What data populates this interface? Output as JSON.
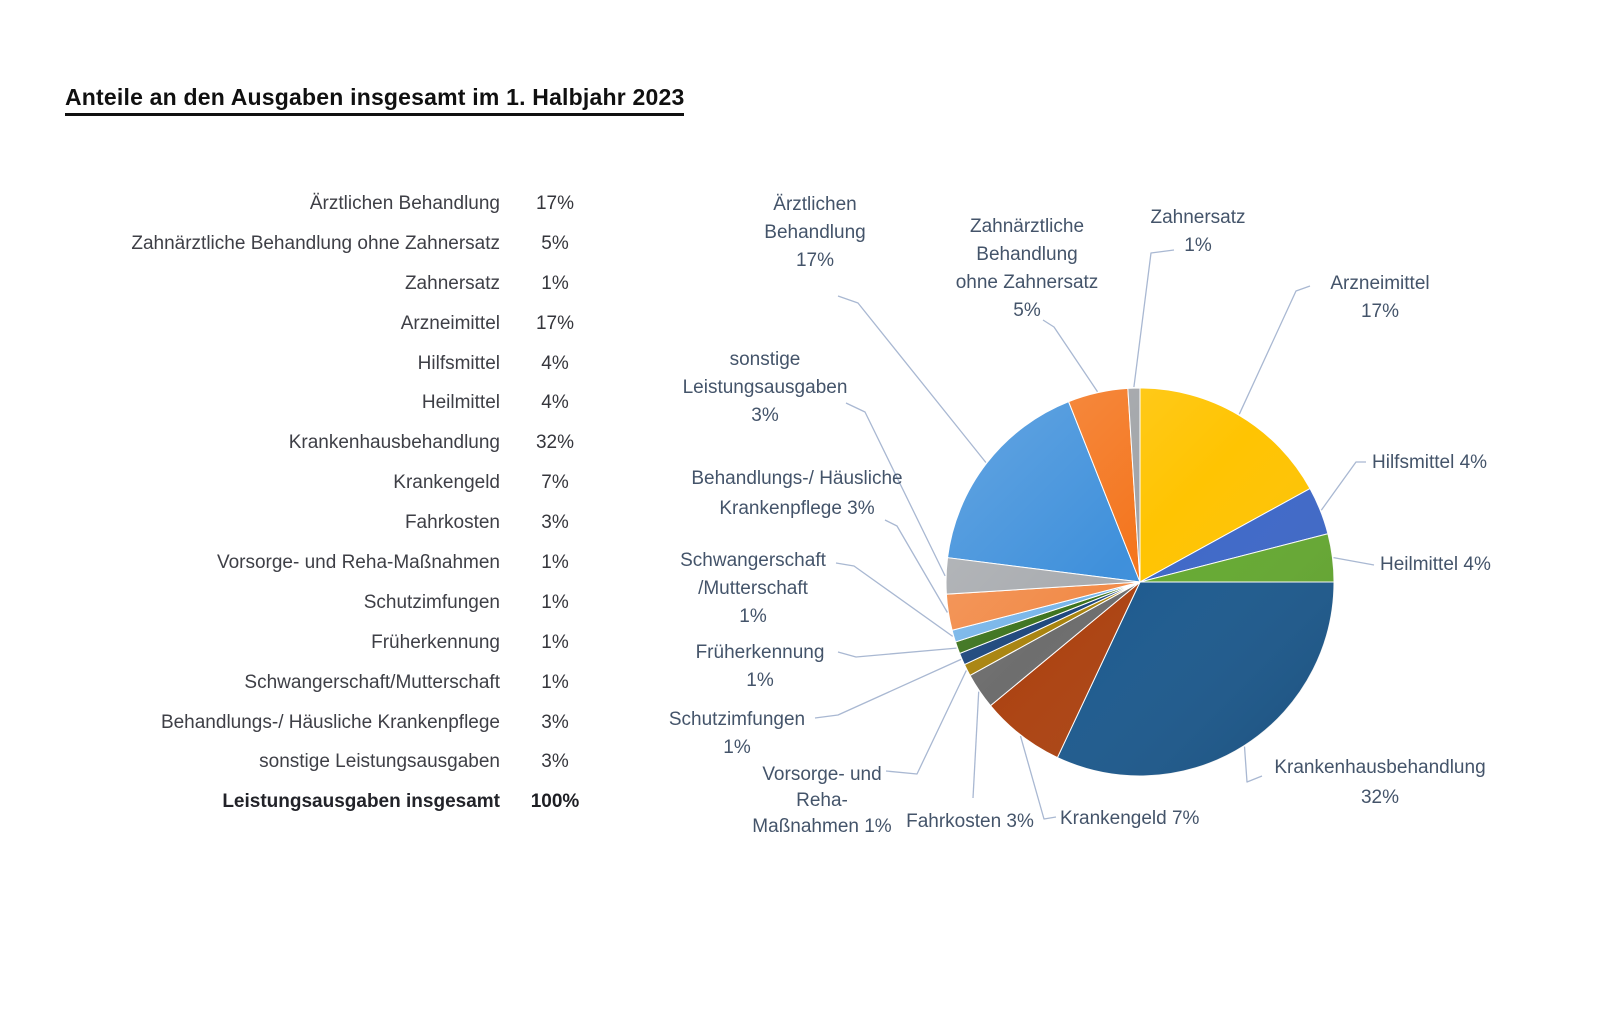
{
  "page": {
    "title": "Anteile an den Ausgaben insgesamt im 1. Halbjahr 2023"
  },
  "table": {
    "total_label": "Leistungsausgaben insgesamt",
    "total_value": "100%"
  },
  "chart_data": {
    "type": "pie",
    "title": "Anteile an den Ausgaben insgesamt im 1. Halbjahr 2023",
    "unit": "percent of total expenditure",
    "legend_position": "none",
    "start_angle_deg": -82.8,
    "direction": "clockwise",
    "label_color": "#44546a",
    "leader_line_color": "#a9b8d2",
    "categories": [
      "Ärztlichen Behandlung",
      "Zahnärztliche Behandlung ohne Zahnersatz",
      "Zahnersatz",
      "Arzneimittel",
      "Hilfsmittel",
      "Heilmittel",
      "Krankenhausbehandlung",
      "Krankengeld",
      "Fahrkosten",
      "Vorsorge- und Reha-Maßnahmen",
      "Schutzimfungen",
      "Früherkennung",
      "Schwangerschaft/Mutterschaft",
      "Behandlungs-/ Häusliche Krankenpflege",
      "sonstige Leistungsausgaben"
    ],
    "values": [
      17,
      5,
      1,
      17,
      4,
      4,
      32,
      7,
      3,
      1,
      1,
      1,
      1,
      3,
      3
    ],
    "slices": [
      {
        "label": "Ärztlichen Behandlung",
        "value": 17,
        "display": "17%",
        "color": "#3f90db",
        "callout_lines": [
          "Ärztlichen",
          "Behandlung",
          "17%"
        ]
      },
      {
        "label": "Zahnärztliche Behandlung ohne Zahnersatz",
        "value": 5,
        "display": "5%",
        "color": "#f4761f",
        "callout_lines": [
          "Zahnärztliche",
          "Behandlung",
          "ohne Zahnersatz",
          "5%"
        ]
      },
      {
        "label": "Zahnersatz",
        "value": 1,
        "display": "1%",
        "color": "#9fa2a6",
        "callout_lines": [
          "Zahnersatz",
          "1%"
        ]
      },
      {
        "label": "Arzneimittel",
        "value": 17,
        "display": "17%",
        "color": "#ffc402",
        "callout_lines": [
          "Arzneimittel",
          "17%"
        ]
      },
      {
        "label": "Hilfsmittel",
        "value": 4,
        "display": "4%",
        "color": "#3e68c8",
        "callout_lines": [
          "Hilfsmittel 4%"
        ]
      },
      {
        "label": "Heilmittel",
        "value": 4,
        "display": "4%",
        "color": "#65a931",
        "callout_lines": [
          "Heilmittel 4%"
        ]
      },
      {
        "label": "Krankenhausbehandlung",
        "value": 32,
        "display": "32%",
        "color": "#1d5a8e",
        "callout_lines": [
          "Krankenhausbehandlung",
          "32%"
        ]
      },
      {
        "label": "Krankengeld",
        "value": 7,
        "display": "7%",
        "color": "#ac4312",
        "callout_lines": [
          "Krankengeld 7%"
        ]
      },
      {
        "label": "Fahrkosten",
        "value": 3,
        "display": "3%",
        "color": "#6e6e6e",
        "callout_lines": [
          "Fahrkosten 3%"
        ]
      },
      {
        "label": "Vorsorge- und Reha-Maßnahmen",
        "value": 1,
        "display": "1%",
        "color": "#a98410",
        "callout_lines": [
          "Vorsorge- und",
          "Reha-",
          "Maßnahmen 1%"
        ]
      },
      {
        "label": "Schutzimfungen",
        "value": 1,
        "display": "1%",
        "color": "#1f487d",
        "callout_lines": [
          "Schutzimfungen",
          "1%"
        ]
      },
      {
        "label": "Früherkennung",
        "value": 1,
        "display": "1%",
        "color": "#3e741f",
        "callout_lines": [
          "Früherkennung",
          "1%"
        ]
      },
      {
        "label": "Schwangerschaft/Mutterschaft",
        "value": 1,
        "display": "1%",
        "color": "#79b6e9",
        "callout_lines": [
          "Schwangerschaft",
          "/Mutterschaft",
          "1%"
        ]
      },
      {
        "label": "Behandlungs-/ Häusliche Krankenpflege",
        "value": 3,
        "display": "3%",
        "color": "#f28c4a",
        "callout_lines": [
          "Behandlungs-/ Häusliche",
          "Krankenpflege 3%"
        ]
      },
      {
        "label": "sonstige Leistungsausgaben",
        "value": 3,
        "display": "3%",
        "color": "#a9acb0",
        "callout_lines": [
          "sonstige",
          "Leistungsausgaben",
          "3%"
        ]
      }
    ]
  }
}
